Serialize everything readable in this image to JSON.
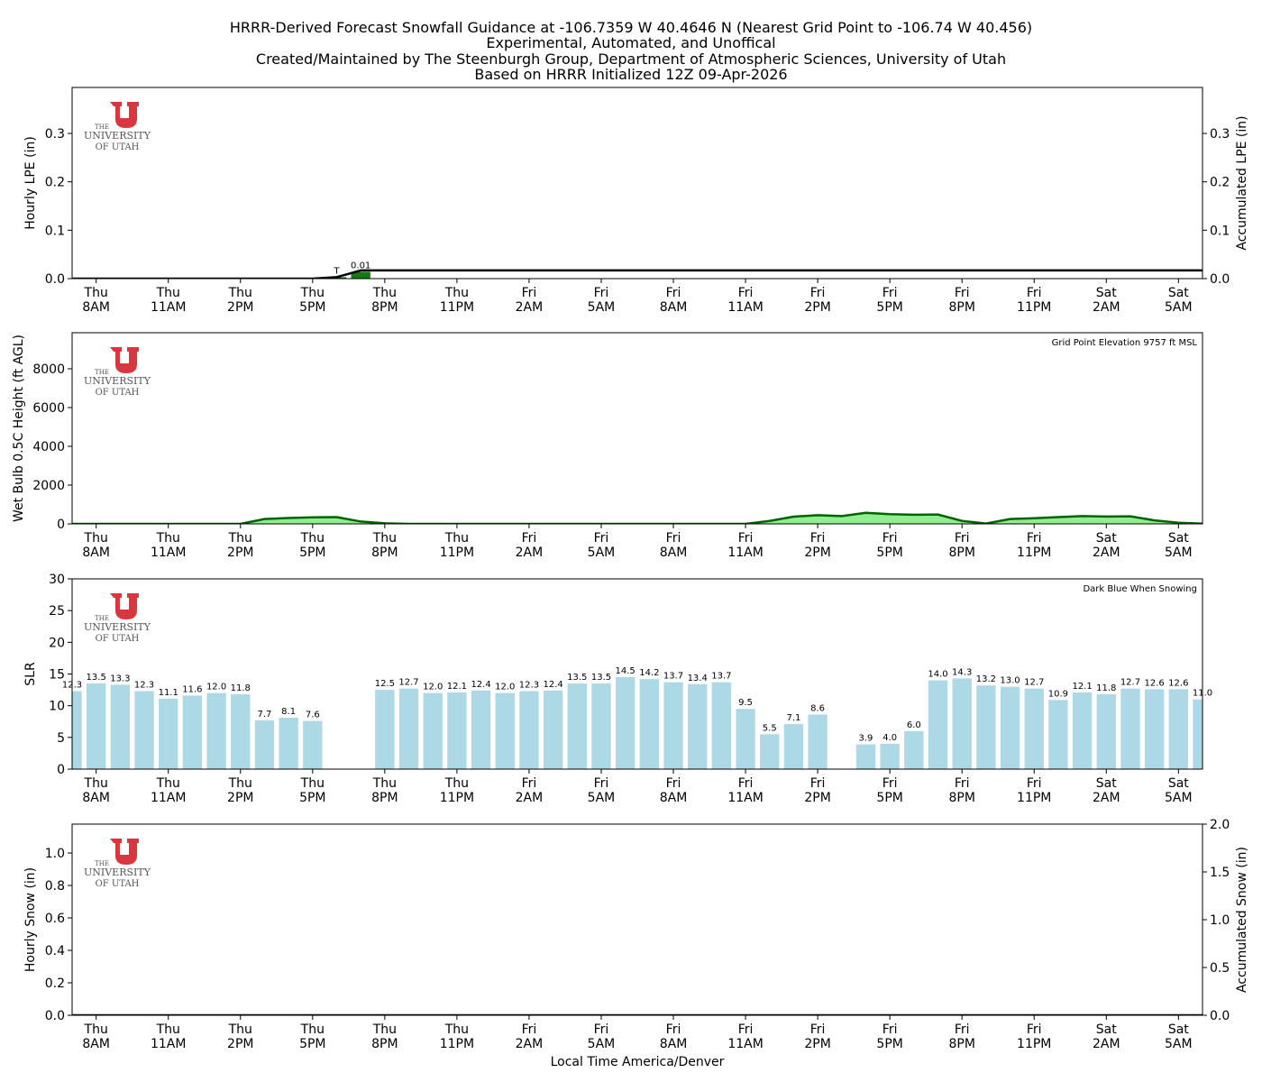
{
  "title": [
    "HRRR-Derived Forecast Snowfall Guidance at -106.7359 W 40.4646 N (Nearest Grid Point to -106.74 W 40.456)",
    "Experimental, Automated, and Unoffical",
    "Created/Maintained by The Steenburgh Group, Department of Atmospheric Sciences, University of Utah",
    "Based on HRRR Initialized 12Z 09-Apr-2026"
  ],
  "logo": [
    "THE",
    "UNIVERSITY",
    "OF UTAH"
  ],
  "x_label": "Local Time America/Denver",
  "chart_data": [
    {
      "type": "bar",
      "ylabel": "Hourly LPE (in)",
      "y2label": "Accumulated LPE (in)",
      "categories": [
        null,
        "Thu\n8AM",
        null,
        null,
        "Thu\n11AM",
        null,
        null,
        "Thu\n2PM",
        null,
        null,
        "Thu\n5PM",
        null,
        null,
        "Thu\n8PM",
        null,
        null,
        "Thu\n11PM",
        null,
        null,
        "Fri\n2AM",
        null,
        null,
        "Fri\n5AM",
        null,
        null,
        "Fri\n8AM",
        null,
        null,
        "Fri\n11AM",
        null,
        null,
        "Fri\n2PM",
        null,
        null,
        "Fri\n5PM",
        null,
        null,
        "Fri\n8PM",
        null,
        null,
        "Fri\n11PM",
        null,
        null,
        "Sat\n2AM",
        null,
        null,
        "Sat\n5AM",
        null
      ],
      "ylim": [
        0,
        0.395
      ],
      "yticks": [
        {
          "value": 0,
          "label": "0.0"
        },
        0.1,
        0.2,
        0.3
      ],
      "y2lim": [
        0,
        0.395
      ],
      "y2ticks": [
        {
          "value": 0,
          "label": "0.0"
        },
        0.1,
        0.2,
        0.3
      ],
      "series": [
        {
          "type": "bar",
          "color": "#137a13",
          "values": [
            0,
            0,
            0,
            0,
            0,
            0,
            0,
            0,
            0,
            0,
            0,
            0.003,
            0.014,
            0,
            0,
            0,
            0,
            0,
            0,
            0,
            0,
            0,
            0,
            0,
            0,
            0,
            0,
            0,
            0,
            0,
            0,
            0,
            0,
            0,
            0,
            0,
            0,
            0,
            0,
            0,
            0,
            0,
            0,
            0,
            0,
            0,
            0,
            0
          ],
          "value_labels": [
            null,
            null,
            null,
            null,
            null,
            null,
            null,
            null,
            null,
            null,
            null,
            "T",
            "0.01",
            null,
            null,
            null,
            null,
            null,
            null,
            null,
            null,
            null,
            null,
            null,
            null,
            null,
            null,
            null,
            null,
            null,
            null,
            null,
            null,
            null,
            null,
            null,
            null,
            null,
            null,
            null,
            null,
            null,
            null,
            null,
            null,
            null,
            null,
            null
          ]
        },
        {
          "type": "line",
          "axis": "y2",
          "color": "#000000",
          "values": [
            0,
            0,
            0,
            0,
            0,
            0,
            0,
            0,
            0,
            0,
            0,
            0.003,
            0.017,
            0.017,
            0.017,
            0.017,
            0.017,
            0.017,
            0.017,
            0.017,
            0.017,
            0.017,
            0.017,
            0.017,
            0.017,
            0.017,
            0.017,
            0.017,
            0.017,
            0.017,
            0.017,
            0.017,
            0.017,
            0.017,
            0.017,
            0.017,
            0.017,
            0.017,
            0.017,
            0.017,
            0.017,
            0.017,
            0.017,
            0.017,
            0.017,
            0.017,
            0.017,
            0.017
          ]
        }
      ]
    },
    {
      "type": "area",
      "ylabel": "Wet Bulb 0.5C Height (ft AGL)",
      "annotation": "Grid Point Elevation 9757 ft MSL",
      "categories": [
        null,
        "Thu\n8AM",
        null,
        null,
        "Thu\n11AM",
        null,
        null,
        "Thu\n2PM",
        null,
        null,
        "Thu\n5PM",
        null,
        null,
        "Thu\n8PM",
        null,
        null,
        "Thu\n11PM",
        null,
        null,
        "Fri\n2AM",
        null,
        null,
        "Fri\n5AM",
        null,
        null,
        "Fri\n8AM",
        null,
        null,
        "Fri\n11AM",
        null,
        null,
        "Fri\n2PM",
        null,
        null,
        "Fri\n5PM",
        null,
        null,
        "Fri\n8PM",
        null,
        null,
        "Fri\n11PM",
        null,
        null,
        "Sat\n2AM",
        null,
        null,
        "Sat\n5AM",
        null
      ],
      "ylim": [
        0,
        9860
      ],
      "yticks": [
        0,
        2000,
        4000,
        6000,
        8000
      ],
      "series": [
        {
          "type": "area",
          "color": "#90ee90",
          "line_color": "#006400",
          "values": [
            0,
            0,
            0,
            0,
            0,
            0,
            0,
            0,
            250,
            300,
            340,
            350,
            120,
            30,
            0,
            0,
            0,
            0,
            0,
            0,
            0,
            0,
            0,
            0,
            0,
            0,
            0,
            0,
            0,
            150,
            370,
            450,
            400,
            570,
            500,
            470,
            480,
            150,
            20,
            250,
            290,
            350,
            400,
            380,
            390,
            180,
            60,
            10
          ]
        }
      ]
    },
    {
      "type": "bar",
      "ylabel": "SLR",
      "annotation": "Dark Blue When Snowing",
      "categories": [
        null,
        "Thu\n8AM",
        null,
        null,
        "Thu\n11AM",
        null,
        null,
        "Thu\n2PM",
        null,
        null,
        "Thu\n5PM",
        null,
        null,
        "Thu\n8PM",
        null,
        null,
        "Thu\n11PM",
        null,
        null,
        "Fri\n2AM",
        null,
        null,
        "Fri\n5AM",
        null,
        null,
        "Fri\n8AM",
        null,
        null,
        "Fri\n11AM",
        null,
        null,
        "Fri\n2PM",
        null,
        null,
        "Fri\n5PM",
        null,
        null,
        "Fri\n8PM",
        null,
        null,
        "Fri\n11PM",
        null,
        null,
        "Sat\n2AM",
        null,
        null,
        "Sat\n5AM",
        null
      ],
      "ylim": [
        0,
        30
      ],
      "yticks": [
        0,
        5,
        10,
        15,
        20,
        25,
        30
      ],
      "series": [
        {
          "type": "bar",
          "color": "#add8e6",
          "values": [
            12.3,
            13.5,
            13.3,
            12.3,
            11.1,
            11.6,
            12.0,
            11.8,
            7.7,
            8.1,
            7.6,
            null,
            null,
            12.5,
            12.7,
            12.0,
            12.1,
            12.4,
            12.0,
            12.3,
            12.4,
            13.5,
            13.5,
            14.5,
            14.2,
            13.7,
            13.4,
            13.7,
            9.5,
            5.5,
            7.1,
            8.6,
            null,
            3.9,
            4.0,
            6.0,
            14.0,
            14.3,
            13.2,
            13.0,
            12.7,
            10.9,
            12.1,
            11.8,
            12.7,
            12.6,
            12.6,
            11.0
          ],
          "value_labels": [
            "12.3",
            "13.5",
            "13.3",
            "12.3",
            "11.1",
            "11.6",
            "12.0",
            "11.8",
            "7.7",
            "8.1",
            "7.6",
            null,
            null,
            "12.5",
            "12.7",
            "12.0",
            "12.1",
            "12.4",
            "12.0",
            "12.3",
            "12.4",
            "13.5",
            "13.5",
            "14.5",
            "14.2",
            "13.7",
            "13.4",
            "13.7",
            "9.5",
            "5.5",
            "7.1",
            "8.6",
            null,
            "3.9",
            "4.0",
            "6.0",
            "14.0",
            "14.3",
            "13.2",
            "13.0",
            "12.7",
            "10.9",
            "12.1",
            "11.8",
            "12.7",
            "12.6",
            "12.6",
            "11.0"
          ]
        }
      ]
    },
    {
      "type": "bar",
      "ylabel": "Hourly Snow (in)",
      "y2label": "Accumulated Snow (in)",
      "categories": [
        null,
        "Thu\n8AM",
        null,
        null,
        "Thu\n11AM",
        null,
        null,
        "Thu\n2PM",
        null,
        null,
        "Thu\n5PM",
        null,
        null,
        "Thu\n8PM",
        null,
        null,
        "Thu\n11PM",
        null,
        null,
        "Fri\n2AM",
        null,
        null,
        "Fri\n5AM",
        null,
        null,
        "Fri\n8AM",
        null,
        null,
        "Fri\n11AM",
        null,
        null,
        "Fri\n2PM",
        null,
        null,
        "Fri\n5PM",
        null,
        null,
        "Fri\n8PM",
        null,
        null,
        "Fri\n11PM",
        null,
        null,
        "Sat\n2AM",
        null,
        null,
        "Sat\n5AM",
        null
      ],
      "ylim": [
        0,
        1.178
      ],
      "yticks": [
        {
          "value": 0,
          "label": "0.0"
        },
        0.2,
        0.4,
        0.6,
        0.8,
        {
          "value": 1,
          "label": "1.0"
        }
      ],
      "y2lim": [
        0,
        2
      ],
      "y2ticks": [
        {
          "value": 0,
          "label": "0.0"
        },
        0.5,
        {
          "value": 1,
          "label": "1.0"
        },
        1.5,
        {
          "value": 2,
          "label": "2.0"
        }
      ],
      "x_label_shown": true,
      "series": [
        {
          "type": "bar",
          "color": "#00008b",
          "values": [
            0,
            0,
            0,
            0,
            0,
            0,
            0,
            0,
            0,
            0,
            0,
            0,
            0,
            0,
            0,
            0,
            0,
            0,
            0,
            0,
            0,
            0,
            0,
            0,
            0,
            0,
            0,
            0,
            0,
            0,
            0,
            0,
            0,
            0,
            0,
            0,
            0,
            0,
            0,
            0,
            0,
            0,
            0,
            0,
            0,
            0,
            0,
            0
          ]
        },
        {
          "type": "line",
          "axis": "y2",
          "color": "#000000",
          "values": [
            0,
            0,
            0,
            0,
            0,
            0,
            0,
            0,
            0,
            0,
            0,
            0,
            0,
            0,
            0,
            0,
            0,
            0,
            0,
            0,
            0,
            0,
            0,
            0,
            0,
            0,
            0,
            0,
            0,
            0,
            0,
            0,
            0,
            0,
            0,
            0,
            0,
            0,
            0,
            0,
            0,
            0,
            0,
            0,
            0,
            0,
            0,
            0
          ]
        }
      ]
    }
  ]
}
